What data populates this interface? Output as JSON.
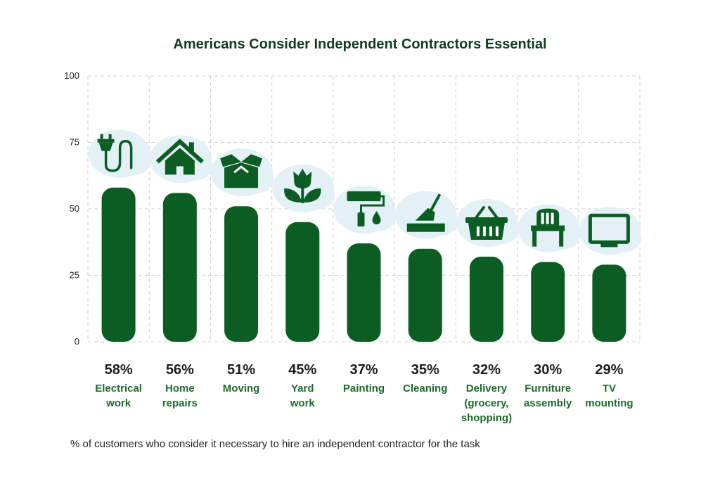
{
  "colors": {
    "bar": "#0b5d23",
    "icon": "#0b5d23",
    "blob": "#e3f1f7",
    "title": "#0f3d1f",
    "category": "#1e6a2c"
  },
  "footnote": "% of customers who consider it necessary to hire an independent contractor for the task",
  "chart_data": {
    "type": "bar",
    "title": "Americans Consider Independent Contractors Essential",
    "xlabel": "",
    "ylabel": "",
    "ylim": [
      0,
      100
    ],
    "yticks": [
      "0",
      "25",
      "50",
      "75",
      "100"
    ],
    "grid": true,
    "categories": [
      [
        "Electrical",
        "work"
      ],
      [
        "Home",
        "repairs"
      ],
      [
        "Moving"
      ],
      [
        "Yard",
        "work"
      ],
      [
        "Painting"
      ],
      [
        "Cleaning"
      ],
      [
        "Delivery",
        "(grocery,",
        "shopping)"
      ],
      [
        "Furniture",
        "assembly"
      ],
      [
        "TV",
        "mounting"
      ]
    ],
    "values": [
      58,
      56,
      51,
      45,
      37,
      35,
      32,
      30,
      29
    ],
    "labels": [
      "58%",
      "56%",
      "51%",
      "45%",
      "37%",
      "35%",
      "32%",
      "30%",
      "29%"
    ],
    "icons": [
      "plug-icon",
      "house-icon",
      "box-icon",
      "tulip-icon",
      "paint-roller-icon",
      "broom-icon",
      "basket-icon",
      "chair-icon",
      "tv-icon"
    ]
  }
}
